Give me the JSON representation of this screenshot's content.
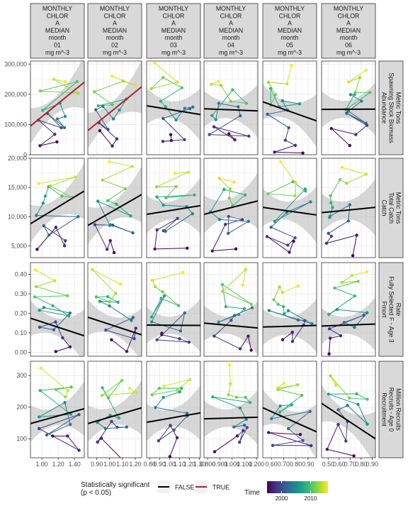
{
  "chart_data": {
    "type": "scatter",
    "columns": [
      {
        "label": [
          "MONTHLY",
          "CHLOR",
          "A",
          "MEDIAN",
          "month",
          "01",
          "mg m^-3"
        ],
        "ticks": [
          1.0,
          1.2,
          1.4
        ],
        "tick_labels": [
          "1.00",
          "1.20",
          "1.40"
        ],
        "xlim": [
          0.86,
          1.52
        ]
      },
      {
        "label": [
          "MONTHLY",
          "CHLOR",
          "A",
          "MEDIAN",
          "month",
          "02",
          "mg m^-3"
        ],
        "ticks": [
          0.9,
          1.0,
          1.1,
          1.2
        ],
        "tick_labels": [
          "0.90",
          "1.00",
          "1.10",
          "1.20"
        ],
        "xlim": [
          0.83,
          1.25
        ]
      },
      {
        "label": [
          "MONTHLY",
          "CHLOR",
          "A",
          "MEDIAN",
          "month",
          "03",
          "mg m^-3"
        ],
        "ticks": [
          0.8,
          0.9,
          1.0,
          1.1,
          1.2,
          1.3
        ],
        "tick_labels": [
          "0.80",
          "0.90",
          "1.00",
          "1.10",
          "1.20",
          "1.30"
        ],
        "xlim": [
          0.77,
          1.31
        ]
      },
      {
        "label": [
          "MONTHLY",
          "CHLOR",
          "A",
          "MEDIAN",
          "month",
          "04",
          "mg m^-3"
        ],
        "ticks": [
          0.8,
          0.9,
          1.0,
          1.1,
          1.2
        ],
        "tick_labels": [
          "0.800",
          "0.900",
          "1.000",
          "1.100",
          "1.200"
        ],
        "xlim": [
          0.77,
          1.21
        ]
      },
      {
        "label": [
          "MONTHLY",
          "CHLOR",
          "A",
          "MEDIAN",
          "month",
          "05",
          "mg m^-3"
        ],
        "ticks": [
          0.6,
          0.7,
          0.8,
          0.9
        ],
        "tick_labels": [
          "0.60",
          "0.70",
          "0.80",
          "0.90"
        ],
        "xlim": [
          0.53,
          0.97
        ]
      },
      {
        "label": [
          "MONTHLY",
          "CHLOR",
          "A",
          "MEDIAN",
          "month",
          "06",
          "mg m^-3"
        ],
        "ticks": [
          0.5,
          0.6,
          0.7,
          0.8,
          0.9
        ],
        "tick_labels": [
          "0.50",
          "0.60",
          "0.70",
          "0.80",
          "0.90"
        ],
        "xlim": [
          0.44,
          0.93
        ]
      }
    ],
    "rows": [
      {
        "label": [
          "Abundance",
          "Spawning Stock Biomass",
          "Metric Tons"
        ],
        "ylim": [
          0,
          310000
        ],
        "ticks": [
          0,
          100000,
          200000,
          300000
        ],
        "tick_labels": [
          "0",
          "100,000",
          "200,000",
          "300,000"
        ],
        "fits": [
          {
            "y": [
              95000,
              240000
            ],
            "sig": true
          },
          {
            "y": [
              80000,
              225000
            ],
            "sig": true
          },
          {
            "y": [
              162000,
              133000
            ],
            "sig": false
          },
          {
            "y": [
              152000,
              145000
            ],
            "sig": false
          },
          {
            "y": [
              175000,
              112000
            ],
            "sig": false
          },
          {
            "y": [
              150000,
              151000
            ],
            "sig": false
          }
        ]
      },
      {
        "label": [
          "Catch",
          "Total Catch",
          "Metric Tons"
        ],
        "ylim": [
          3000,
          20000
        ],
        "ticks": [
          5000,
          10000,
          15000,
          20000
        ],
        "tick_labels": [
          "5,000",
          "10,000",
          "15,000",
          "20,000"
        ],
        "fits": [
          {
            "y": [
              8800,
              14400
            ],
            "sig": false
          },
          {
            "y": [
              8500,
              13800
            ],
            "sig": false
          },
          {
            "y": [
              10400,
              11900
            ],
            "sig": false
          },
          {
            "y": [
              10400,
              12700
            ],
            "sig": false
          },
          {
            "y": [
              11600,
              10300
            ],
            "sig": false
          },
          {
            "y": [
              10700,
              11600
            ],
            "sig": false
          }
        ]
      },
      {
        "label": [
          "Fmort",
          "Fully Selected F - Age 3",
          "Rate"
        ],
        "ylim": [
          -0.02,
          0.46
        ],
        "ticks": [
          0.0,
          0.1,
          0.2,
          0.3,
          0.4
        ],
        "tick_labels": [
          "0.00",
          "0.10",
          "0.20",
          "0.30",
          "0.40"
        ],
        "fits": [
          {
            "y": [
              0.175,
              0.085
            ],
            "sig": false
          },
          {
            "y": [
              0.18,
              0.09
            ],
            "sig": false
          },
          {
            "y": [
              0.14,
              0.138
            ],
            "sig": false
          },
          {
            "y": [
              0.15,
              0.125
            ],
            "sig": false
          },
          {
            "y": [
              0.13,
              0.138
            ],
            "sig": false
          },
          {
            "y": [
              0.135,
              0.145
            ],
            "sig": false
          }
        ]
      },
      {
        "label": [
          "Recruitment",
          "Recruits - Age 0",
          "Million Recruits"
        ],
        "ylim": [
          40,
          345
        ],
        "ticks": [
          100,
          200,
          300
        ],
        "tick_labels": [
          "100",
          "200",
          "300"
        ],
        "fits": [
          {
            "y": [
              148,
              195
            ],
            "sig": false
          },
          {
            "y": [
              148,
              198
            ],
            "sig": false
          },
          {
            "y": [
              152,
              182
            ],
            "sig": false
          },
          {
            "y": [
              163,
              168
            ],
            "sig": false
          },
          {
            "y": [
              198,
              122
            ],
            "sig": false
          },
          {
            "y": [
              212,
              100
            ],
            "sig": false
          }
        ]
      }
    ],
    "time_range": [
      1995,
      2016
    ],
    "legend": {
      "sig_title": [
        "Statistically significant",
        "(p < 0.05)"
      ],
      "items": [
        {
          "label": "FALSE",
          "color": "#000000"
        },
        {
          "label": "TRUE",
          "color": "#B22222"
        }
      ],
      "time_title": "Time",
      "time_ticks": [
        2000,
        2010
      ],
      "time_tick_labels": [
        "2000",
        "2010"
      ]
    },
    "colors": {
      "strip_bg": "#D9D9D9",
      "panel_border": "#333333",
      "grid": "#EBEBEB",
      "ribbon": "#BDBDBD",
      "sig_true": "#B22222",
      "sig_false": "#000000"
    }
  }
}
